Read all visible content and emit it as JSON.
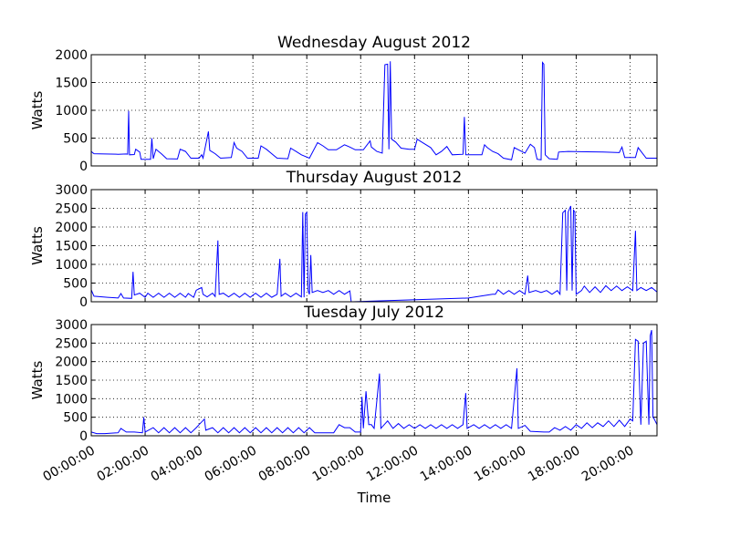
{
  "chart_data": [
    {
      "type": "line",
      "title": "Wednesday August 2012",
      "ylabel": "Watts",
      "ylim": [
        0,
        2000
      ],
      "yticks": [
        "0",
        "500",
        "1000",
        "1500",
        "2000"
      ],
      "series_color": "#0000ff",
      "grid": true,
      "points": [
        [
          0,
          260
        ],
        [
          0.1,
          220
        ],
        [
          0.5,
          215
        ],
        [
          1,
          210
        ],
        [
          1.3,
          215
        ],
        [
          1.35,
          210
        ],
        [
          1.39,
          990
        ],
        [
          1.42,
          200
        ],
        [
          1.6,
          205
        ],
        [
          1.65,
          300
        ],
        [
          1.8,
          250
        ],
        [
          1.85,
          120
        ],
        [
          2.2,
          120
        ],
        [
          2.25,
          500
        ],
        [
          2.3,
          130
        ],
        [
          2.4,
          300
        ],
        [
          2.6,
          220
        ],
        [
          2.8,
          130
        ],
        [
          3.2,
          125
        ],
        [
          3.3,
          300
        ],
        [
          3.5,
          260
        ],
        [
          3.7,
          140
        ],
        [
          4.0,
          140
        ],
        [
          4.1,
          200
        ],
        [
          4.15,
          140
        ],
        [
          4.35,
          620
        ],
        [
          4.4,
          280
        ],
        [
          4.6,
          220
        ],
        [
          4.8,
          140
        ],
        [
          5.2,
          150
        ],
        [
          5.3,
          420
        ],
        [
          5.4,
          320
        ],
        [
          5.6,
          260
        ],
        [
          5.8,
          140
        ],
        [
          6.2,
          140
        ],
        [
          6.3,
          360
        ],
        [
          6.5,
          300
        ],
        [
          6.7,
          220
        ],
        [
          6.9,
          140
        ],
        [
          7.3,
          130
        ],
        [
          7.4,
          320
        ],
        [
          7.6,
          260
        ],
        [
          7.8,
          200
        ],
        [
          8.1,
          140
        ],
        [
          8.4,
          420
        ],
        [
          8.6,
          360
        ],
        [
          8.8,
          290
        ],
        [
          9.1,
          290
        ],
        [
          9.4,
          380
        ],
        [
          9.6,
          340
        ],
        [
          9.8,
          290
        ],
        [
          10.1,
          290
        ],
        [
          10.35,
          450
        ],
        [
          10.4,
          340
        ],
        [
          10.6,
          260
        ],
        [
          10.8,
          230
        ],
        [
          10.9,
          1820
        ],
        [
          11.0,
          1830
        ],
        [
          11.05,
          300
        ],
        [
          11.1,
          1880
        ],
        [
          11.15,
          480
        ],
        [
          11.3,
          430
        ],
        [
          11.5,
          320
        ],
        [
          11.8,
          300
        ],
        [
          12.0,
          300
        ],
        [
          12.1,
          480
        ],
        [
          12.3,
          420
        ],
        [
          12.6,
          330
        ],
        [
          12.8,
          200
        ],
        [
          13.0,
          260
        ],
        [
          13.2,
          350
        ],
        [
          13.4,
          200
        ],
        [
          13.8,
          210
        ],
        [
          13.85,
          880
        ],
        [
          13.9,
          200
        ],
        [
          14.2,
          200
        ],
        [
          14.5,
          200
        ],
        [
          14.6,
          380
        ],
        [
          14.7,
          330
        ],
        [
          14.9,
          260
        ],
        [
          15.1,
          220
        ],
        [
          15.3,
          140
        ],
        [
          15.6,
          110
        ],
        [
          15.7,
          330
        ],
        [
          15.9,
          280
        ],
        [
          16.1,
          230
        ],
        [
          16.3,
          390
        ],
        [
          16.45,
          330
        ],
        [
          16.55,
          120
        ],
        [
          16.7,
          110
        ],
        [
          16.75,
          1860
        ],
        [
          16.8,
          1830
        ],
        [
          16.85,
          200
        ],
        [
          17.0,
          130
        ],
        [
          17.3,
          120
        ],
        [
          17.35,
          250
        ],
        [
          17.7,
          260
        ],
        [
          19.0,
          250
        ],
        [
          19.6,
          240
        ],
        [
          19.7,
          340
        ],
        [
          19.8,
          150
        ],
        [
          20.2,
          150
        ],
        [
          20.3,
          330
        ],
        [
          20.6,
          140
        ],
        [
          21.0,
          140
        ]
      ]
    },
    {
      "type": "line",
      "title": "Thursday August 2012",
      "ylabel": "Watts",
      "ylim": [
        0,
        3000
      ],
      "yticks": [
        "0",
        "500",
        "1000",
        "1500",
        "2000",
        "2500",
        "3000"
      ],
      "series_color": "#0000ff",
      "grid": true,
      "points": [
        [
          0,
          320
        ],
        [
          0.1,
          150
        ],
        [
          0.6,
          120
        ],
        [
          1.0,
          100
        ],
        [
          1.1,
          220
        ],
        [
          1.2,
          100
        ],
        [
          1.5,
          90
        ],
        [
          1.55,
          800
        ],
        [
          1.6,
          180
        ],
        [
          1.8,
          230
        ],
        [
          2.0,
          120
        ],
        [
          2.1,
          230
        ],
        [
          2.3,
          120
        ],
        [
          2.5,
          230
        ],
        [
          2.7,
          120
        ],
        [
          2.9,
          230
        ],
        [
          3.1,
          120
        ],
        [
          3.3,
          230
        ],
        [
          3.5,
          120
        ],
        [
          3.6,
          220
        ],
        [
          3.8,
          120
        ],
        [
          3.9,
          310
        ],
        [
          4.1,
          380
        ],
        [
          4.15,
          200
        ],
        [
          4.3,
          130
        ],
        [
          4.5,
          230
        ],
        [
          4.6,
          140
        ],
        [
          4.7,
          1640
        ],
        [
          4.75,
          200
        ],
        [
          4.9,
          230
        ],
        [
          5.1,
          130
        ],
        [
          5.3,
          230
        ],
        [
          5.5,
          120
        ],
        [
          5.7,
          230
        ],
        [
          5.9,
          120
        ],
        [
          6.1,
          230
        ],
        [
          6.3,
          120
        ],
        [
          6.5,
          230
        ],
        [
          6.7,
          120
        ],
        [
          6.9,
          200
        ],
        [
          7.0,
          1150
        ],
        [
          7.05,
          150
        ],
        [
          7.2,
          230
        ],
        [
          7.4,
          130
        ],
        [
          7.6,
          230
        ],
        [
          7.8,
          130
        ],
        [
          7.85,
          2400
        ],
        [
          7.9,
          120
        ],
        [
          7.95,
          2350
        ],
        [
          8.0,
          2390
        ],
        [
          8.05,
          300
        ],
        [
          8.1,
          200
        ],
        [
          8.15,
          1250
        ],
        [
          8.2,
          250
        ],
        [
          8.4,
          300
        ],
        [
          8.6,
          250
        ],
        [
          8.8,
          300
        ],
        [
          9.0,
          200
        ],
        [
          9.2,
          300
        ],
        [
          9.4,
          200
        ],
        [
          9.6,
          290
        ],
        [
          9.65,
          0
        ],
        [
          9.7,
          0
        ],
        [
          14.0,
          100
        ],
        [
          14.9,
          200
        ],
        [
          15.0,
          200
        ],
        [
          15.1,
          320
        ],
        [
          15.3,
          200
        ],
        [
          15.5,
          300
        ],
        [
          15.7,
          200
        ],
        [
          15.9,
          300
        ],
        [
          16.1,
          200
        ],
        [
          16.2,
          700
        ],
        [
          16.25,
          250
        ],
        [
          16.5,
          300
        ],
        [
          16.7,
          250
        ],
        [
          16.9,
          300
        ],
        [
          17.1,
          200
        ],
        [
          17.3,
          300
        ],
        [
          17.4,
          200
        ],
        [
          17.5,
          2380
        ],
        [
          17.6,
          2450
        ],
        [
          17.65,
          300
        ],
        [
          17.7,
          2400
        ],
        [
          17.8,
          2560
        ],
        [
          17.85,
          300
        ],
        [
          17.9,
          2450
        ],
        [
          17.95,
          2400
        ],
        [
          18.0,
          200
        ],
        [
          18.2,
          300
        ],
        [
          18.3,
          420
        ],
        [
          18.5,
          250
        ],
        [
          18.7,
          400
        ],
        [
          18.9,
          250
        ],
        [
          19.1,
          430
        ],
        [
          19.3,
          300
        ],
        [
          19.5,
          420
        ],
        [
          19.7,
          300
        ],
        [
          19.9,
          400
        ],
        [
          20.1,
          300
        ],
        [
          20.2,
          1900
        ],
        [
          20.25,
          300
        ],
        [
          20.4,
          380
        ],
        [
          20.6,
          300
        ],
        [
          20.8,
          380
        ],
        [
          21.0,
          260
        ]
      ]
    },
    {
      "type": "line",
      "title": "Tuesday July 2012",
      "ylabel": "Watts",
      "xlabel": "Time",
      "ylim": [
        0,
        3000
      ],
      "yticks": [
        "0",
        "500",
        "1000",
        "1500",
        "2000",
        "2500",
        "3000"
      ],
      "xticks": [
        "00:00:00",
        "02:00:00",
        "04:00:00",
        "06:00:00",
        "08:00:00",
        "10:00:00",
        "12:00:00",
        "14:00:00",
        "16:00:00",
        "18:00:00",
        "20:00:00"
      ],
      "series_color": "#0000ff",
      "grid": true,
      "points": [
        [
          0,
          100
        ],
        [
          0.2,
          60
        ],
        [
          0.5,
          60
        ],
        [
          1.0,
          80
        ],
        [
          1.1,
          200
        ],
        [
          1.3,
          100
        ],
        [
          1.6,
          100
        ],
        [
          1.9,
          80
        ],
        [
          1.95,
          500
        ],
        [
          2.0,
          100
        ],
        [
          2.3,
          220
        ],
        [
          2.5,
          80
        ],
        [
          2.7,
          220
        ],
        [
          2.9,
          80
        ],
        [
          3.1,
          220
        ],
        [
          3.3,
          80
        ],
        [
          3.5,
          220
        ],
        [
          3.7,
          80
        ],
        [
          3.9,
          220
        ],
        [
          4.0,
          300
        ],
        [
          4.2,
          450
        ],
        [
          4.25,
          150
        ],
        [
          4.5,
          220
        ],
        [
          4.7,
          80
        ],
        [
          4.9,
          220
        ],
        [
          5.1,
          80
        ],
        [
          5.3,
          220
        ],
        [
          5.5,
          80
        ],
        [
          5.7,
          220
        ],
        [
          5.9,
          80
        ],
        [
          6.1,
          220
        ],
        [
          6.3,
          80
        ],
        [
          6.5,
          220
        ],
        [
          6.7,
          80
        ],
        [
          6.9,
          220
        ],
        [
          7.1,
          80
        ],
        [
          7.3,
          220
        ],
        [
          7.5,
          80
        ],
        [
          7.7,
          220
        ],
        [
          7.9,
          80
        ],
        [
          8.1,
          220
        ],
        [
          8.3,
          80
        ],
        [
          8.5,
          80
        ],
        [
          9.0,
          80
        ],
        [
          9.2,
          300
        ],
        [
          9.4,
          220
        ],
        [
          9.6,
          220
        ],
        [
          9.8,
          100
        ],
        [
          10.0,
          100
        ],
        [
          10.05,
          1050
        ],
        [
          10.1,
          200
        ],
        [
          10.2,
          1200
        ],
        [
          10.3,
          300
        ],
        [
          10.4,
          300
        ],
        [
          10.5,
          200
        ],
        [
          10.7,
          1680
        ],
        [
          10.75,
          200
        ],
        [
          11.0,
          400
        ],
        [
          11.2,
          200
        ],
        [
          11.4,
          330
        ],
        [
          11.6,
          200
        ],
        [
          11.8,
          300
        ],
        [
          12.0,
          200
        ],
        [
          12.2,
          300
        ],
        [
          12.4,
          200
        ],
        [
          12.6,
          300
        ],
        [
          12.8,
          200
        ],
        [
          13.0,
          300
        ],
        [
          13.2,
          200
        ],
        [
          13.4,
          300
        ],
        [
          13.6,
          200
        ],
        [
          13.8,
          300
        ],
        [
          13.9,
          1150
        ],
        [
          13.95,
          200
        ],
        [
          14.2,
          300
        ],
        [
          14.4,
          200
        ],
        [
          14.6,
          300
        ],
        [
          14.8,
          200
        ],
        [
          15.0,
          300
        ],
        [
          15.2,
          200
        ],
        [
          15.4,
          300
        ],
        [
          15.6,
          200
        ],
        [
          15.8,
          1820
        ],
        [
          15.85,
          200
        ],
        [
          16.1,
          280
        ],
        [
          16.3,
          120
        ],
        [
          16.8,
          100
        ],
        [
          17.0,
          100
        ],
        [
          17.2,
          220
        ],
        [
          17.4,
          150
        ],
        [
          17.6,
          250
        ],
        [
          17.8,
          150
        ],
        [
          18.0,
          300
        ],
        [
          18.2,
          200
        ],
        [
          18.4,
          350
        ],
        [
          18.6,
          220
        ],
        [
          18.8,
          350
        ],
        [
          19.0,
          250
        ],
        [
          19.2,
          400
        ],
        [
          19.4,
          250
        ],
        [
          19.6,
          420
        ],
        [
          19.8,
          250
        ],
        [
          20.0,
          450
        ],
        [
          20.1,
          400
        ],
        [
          20.2,
          2600
        ],
        [
          20.3,
          2550
        ],
        [
          20.4,
          300
        ],
        [
          20.5,
          2500
        ],
        [
          20.6,
          2550
        ],
        [
          20.7,
          300
        ],
        [
          20.75,
          2700
        ],
        [
          20.8,
          2850
        ],
        [
          20.85,
          500
        ],
        [
          20.9,
          450
        ],
        [
          21.0,
          300
        ]
      ]
    }
  ]
}
